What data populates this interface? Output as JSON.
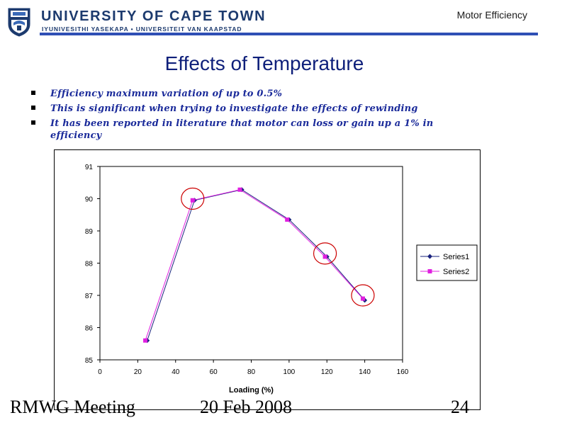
{
  "header": {
    "university_name": "UNIVERSITY OF CAPE TOWN",
    "university_subtitle": "IYUNIVESITHI YASEKAPA • UNIVERSITEIT VAN KAAPSTAD",
    "section_title": "Motor Efficiency",
    "accent_color": "#2f4fb5"
  },
  "slide": {
    "title": "Effects of Temperature",
    "bullets": [
      "Efficiency maximum variation of up to 0.5%",
      "This is significant when trying to investigate the effects of rewinding",
      "It has been reported in literature that motor can loss or gain up a 1% in efficiency"
    ]
  },
  "chart_data": {
    "type": "line",
    "xlabel": "Loading (%)",
    "ylabel": "",
    "xlim": [
      0,
      160
    ],
    "ylim": [
      85,
      91
    ],
    "x_ticks": [
      0,
      20,
      40,
      60,
      80,
      100,
      120,
      140,
      160
    ],
    "y_ticks": [
      85,
      86,
      87,
      88,
      89,
      90,
      91
    ],
    "grid": false,
    "legend_position": "right",
    "series": [
      {
        "name": "Series1",
        "color": "#1a237e",
        "marker": "diamond",
        "x": [
          25,
          50,
          75,
          100,
          120,
          140
        ],
        "y": [
          85.6,
          89.95,
          90.28,
          89.35,
          88.2,
          86.85
        ]
      },
      {
        "name": "Series2",
        "color": "#e020e0",
        "marker": "square",
        "x": [
          24,
          49,
          74,
          99,
          119,
          139
        ],
        "y": [
          85.6,
          89.95,
          90.28,
          89.35,
          88.2,
          86.9
        ]
      }
    ],
    "highlight_circles": [
      {
        "x": 49,
        "y": 90.0
      },
      {
        "x": 119,
        "y": 88.3
      },
      {
        "x": 139,
        "y": 87.0
      }
    ],
    "highlight_color": "#cc0000"
  },
  "footer": {
    "left": "RMWG Meeting",
    "date": "20 Feb 2008",
    "page": "24"
  }
}
